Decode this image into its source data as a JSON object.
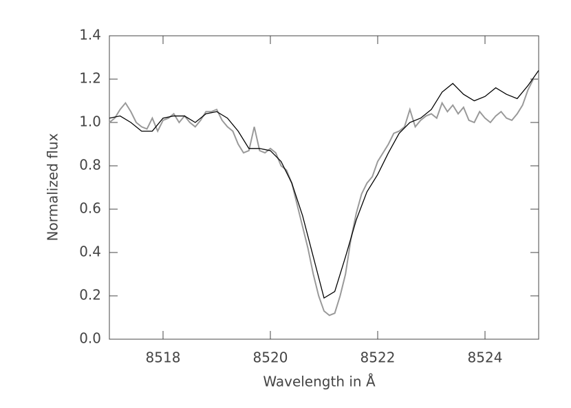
{
  "chart_data": {
    "type": "line",
    "xlabel": "Wavelength in Å",
    "ylabel": "Normalized flux",
    "xlim": [
      8517,
      8525
    ],
    "ylim": [
      0,
      1.4
    ],
    "xticks": [
      8518,
      8520,
      8522,
      8524
    ],
    "yticks": [
      {
        "value": 0,
        "label": "0.0"
      },
      0.2,
      0.4,
      0.6,
      0.8,
      {
        "value": 1,
        "label": "1.0"
      },
      1.2,
      1.4
    ],
    "series": [
      {
        "color": "#999999",
        "x": [
          8517.0,
          8517.1,
          8517.2,
          8517.3,
          8517.4,
          8517.5,
          8517.6,
          8517.7,
          8517.8,
          8517.9,
          8518.0,
          8518.1,
          8518.2,
          8518.3,
          8518.4,
          8518.5,
          8518.6,
          8518.7,
          8518.8,
          8518.9,
          8519.0,
          8519.1,
          8519.2,
          8519.3,
          8519.4,
          8519.5,
          8519.6,
          8519.7,
          8519.8,
          8519.9,
          8520.0,
          8520.1,
          8520.2,
          8520.3,
          8520.4,
          8520.5,
          8520.6,
          8520.7,
          8520.8,
          8520.9,
          8521.0,
          8521.1,
          8521.2,
          8521.3,
          8521.4,
          8521.5,
          8521.6,
          8521.7,
          8521.8,
          8521.9,
          8522.0,
          8522.1,
          8522.2,
          8522.3,
          8522.4,
          8522.5,
          8522.6,
          8522.7,
          8522.8,
          8522.9,
          8523.0,
          8523.1,
          8523.2,
          8523.3,
          8523.4,
          8523.5,
          8523.6,
          8523.7,
          8523.8,
          8523.9,
          8524.0,
          8524.1,
          8524.2,
          8524.3,
          8524.4,
          8524.5,
          8524.6,
          8524.7,
          8524.8,
          8524.9,
          8525.0
        ],
        "values": [
          1.0,
          1.02,
          1.06,
          1.09,
          1.05,
          1.0,
          0.98,
          0.97,
          1.02,
          0.96,
          1.01,
          1.02,
          1.04,
          1.0,
          1.03,
          1.0,
          0.98,
          1.01,
          1.05,
          1.05,
          1.06,
          1.01,
          0.98,
          0.96,
          0.9,
          0.86,
          0.87,
          0.98,
          0.87,
          0.86,
          0.88,
          0.86,
          0.8,
          0.78,
          0.72,
          0.62,
          0.52,
          0.42,
          0.3,
          0.2,
          0.13,
          0.11,
          0.12,
          0.2,
          0.3,
          0.46,
          0.58,
          0.67,
          0.72,
          0.75,
          0.82,
          0.86,
          0.9,
          0.95,
          0.96,
          0.98,
          1.06,
          0.98,
          1.01,
          1.03,
          1.04,
          1.02,
          1.09,
          1.05,
          1.08,
          1.04,
          1.07,
          1.01,
          1.0,
          1.05,
          1.02,
          1.0,
          1.03,
          1.05,
          1.02,
          1.01,
          1.04,
          1.08,
          1.15,
          1.2,
          1.2
        ]
      },
      {
        "color": "#000000",
        "x": [
          8517.0,
          8517.2,
          8517.4,
          8517.6,
          8517.8,
          8518.0,
          8518.2,
          8518.4,
          8518.6,
          8518.8,
          8519.0,
          8519.2,
          8519.4,
          8519.6,
          8519.8,
          8520.0,
          8520.2,
          8520.4,
          8520.6,
          8520.8,
          8521.0,
          8521.2,
          8521.4,
          8521.6,
          8521.8,
          8522.0,
          8522.2,
          8522.4,
          8522.6,
          8522.8,
          8523.0,
          8523.2,
          8523.4,
          8523.6,
          8523.8,
          8524.0,
          8524.2,
          8524.4,
          8524.6,
          8524.8,
          8525.0
        ],
        "values": [
          1.02,
          1.03,
          1.0,
          0.96,
          0.96,
          1.02,
          1.03,
          1.03,
          1.0,
          1.04,
          1.05,
          1.02,
          0.96,
          0.88,
          0.88,
          0.87,
          0.82,
          0.72,
          0.57,
          0.38,
          0.19,
          0.22,
          0.38,
          0.55,
          0.68,
          0.76,
          0.86,
          0.95,
          1.0,
          1.02,
          1.06,
          1.14,
          1.18,
          1.13,
          1.1,
          1.12,
          1.16,
          1.13,
          1.11,
          1.17,
          1.24
        ]
      }
    ]
  }
}
